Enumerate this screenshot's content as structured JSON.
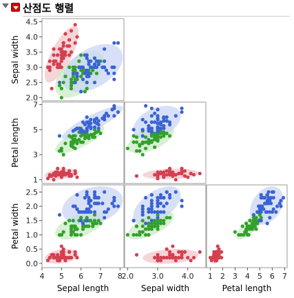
{
  "report": {
    "title": "산점도 행렬"
  },
  "icons": {
    "disclosure": "disclosure-triangle-icon",
    "menu": "red-popup-menu-icon"
  },
  "colors": {
    "setosa": "#d4404f",
    "versicolor": "#33a02c",
    "virginica": "#3a63d4",
    "ellipse_setosa": "#f3c6cb",
    "ellipse_versicolor": "#c9ecc3",
    "ellipse_virginica": "#cad6f3"
  },
  "chart_data": {
    "type": "scatter",
    "variables": [
      "Sepal length",
      "Sepal width",
      "Petal length",
      "Petal width"
    ],
    "axes": {
      "Sepal length": {
        "range": [
          4,
          8.2
        ],
        "ticks": [
          4,
          5,
          6,
          7,
          8
        ]
      },
      "Sepal width": {
        "range": [
          1.9,
          4.6
        ],
        "ticks": [
          2.0,
          2.5,
          3.0,
          3.5,
          4.0,
          4.5
        ],
        "ticks_bottom": [
          2.0,
          3.0,
          4.0
        ]
      },
      "Petal length": {
        "range": [
          0.7,
          7.2
        ],
        "ticks": [
          1,
          3,
          5,
          7
        ],
        "ticks_bottom": [
          1,
          2,
          3,
          4,
          5,
          6,
          7
        ]
      },
      "Petal width": {
        "range": [
          -0.15,
          2.75
        ],
        "ticks": [
          0,
          0.5,
          1.0,
          1.5,
          2.0,
          2.5
        ]
      }
    },
    "layout": "lower-triangle",
    "density_ellipses": true,
    "groups": [
      {
        "color_key": "setosa",
        "points": [
          [
            5.1,
            3.5,
            1.4,
            0.2
          ],
          [
            4.9,
            3.0,
            1.4,
            0.2
          ],
          [
            4.7,
            3.2,
            1.3,
            0.2
          ],
          [
            4.6,
            3.1,
            1.5,
            0.2
          ],
          [
            5.0,
            3.6,
            1.4,
            0.2
          ],
          [
            5.4,
            3.9,
            1.7,
            0.4
          ],
          [
            4.6,
            3.4,
            1.4,
            0.3
          ],
          [
            5.0,
            3.4,
            1.5,
            0.2
          ],
          [
            4.4,
            2.9,
            1.4,
            0.2
          ],
          [
            4.9,
            3.1,
            1.5,
            0.1
          ],
          [
            5.4,
            3.7,
            1.5,
            0.2
          ],
          [
            4.8,
            3.4,
            1.6,
            0.2
          ],
          [
            4.8,
            3.0,
            1.4,
            0.1
          ],
          [
            4.3,
            3.0,
            1.1,
            0.1
          ],
          [
            5.8,
            4.0,
            1.2,
            0.2
          ],
          [
            5.7,
            4.4,
            1.5,
            0.4
          ],
          [
            5.4,
            3.9,
            1.3,
            0.4
          ],
          [
            5.1,
            3.5,
            1.4,
            0.3
          ],
          [
            5.7,
            3.8,
            1.7,
            0.3
          ],
          [
            5.1,
            3.8,
            1.5,
            0.3
          ],
          [
            5.4,
            3.4,
            1.7,
            0.2
          ],
          [
            5.1,
            3.7,
            1.5,
            0.4
          ],
          [
            4.6,
            3.6,
            1.0,
            0.2
          ],
          [
            5.1,
            3.3,
            1.7,
            0.5
          ],
          [
            4.8,
            3.4,
            1.9,
            0.2
          ],
          [
            5.0,
            3.0,
            1.6,
            0.2
          ],
          [
            5.0,
            3.4,
            1.6,
            0.4
          ],
          [
            5.2,
            3.5,
            1.5,
            0.2
          ],
          [
            5.2,
            3.4,
            1.4,
            0.2
          ],
          [
            4.7,
            3.2,
            1.6,
            0.2
          ],
          [
            4.8,
            3.1,
            1.6,
            0.2
          ],
          [
            5.4,
            3.4,
            1.5,
            0.4
          ],
          [
            5.2,
            4.1,
            1.5,
            0.1
          ],
          [
            5.5,
            4.2,
            1.4,
            0.2
          ],
          [
            4.9,
            3.1,
            1.5,
            0.2
          ],
          [
            5.0,
            3.2,
            1.2,
            0.2
          ],
          [
            5.5,
            3.5,
            1.3,
            0.2
          ],
          [
            4.9,
            3.6,
            1.4,
            0.1
          ],
          [
            4.4,
            3.0,
            1.3,
            0.2
          ],
          [
            5.1,
            3.4,
            1.5,
            0.2
          ],
          [
            5.0,
            3.5,
            1.3,
            0.3
          ],
          [
            4.5,
            2.3,
            1.3,
            0.3
          ],
          [
            4.4,
            3.2,
            1.3,
            0.2
          ],
          [
            5.0,
            3.5,
            1.6,
            0.6
          ],
          [
            5.1,
            3.8,
            1.9,
            0.4
          ],
          [
            4.8,
            3.0,
            1.4,
            0.3
          ],
          [
            5.1,
            3.8,
            1.6,
            0.2
          ],
          [
            4.6,
            3.2,
            1.4,
            0.2
          ],
          [
            5.3,
            3.7,
            1.5,
            0.2
          ],
          [
            5.0,
            3.3,
            1.4,
            0.2
          ]
        ]
      },
      {
        "color_key": "versicolor",
        "points": [
          [
            7.0,
            3.2,
            4.7,
            1.4
          ],
          [
            6.4,
            3.2,
            4.5,
            1.5
          ],
          [
            6.9,
            3.1,
            4.9,
            1.5
          ],
          [
            5.5,
            2.3,
            4.0,
            1.3
          ],
          [
            6.5,
            2.8,
            4.6,
            1.5
          ],
          [
            5.7,
            2.8,
            4.5,
            1.3
          ],
          [
            6.3,
            3.3,
            4.7,
            1.6
          ],
          [
            4.9,
            2.4,
            3.3,
            1.0
          ],
          [
            6.6,
            2.9,
            4.6,
            1.3
          ],
          [
            5.2,
            2.7,
            3.9,
            1.4
          ],
          [
            5.0,
            2.0,
            3.5,
            1.0
          ],
          [
            5.9,
            3.0,
            4.2,
            1.5
          ],
          [
            6.0,
            2.2,
            4.0,
            1.0
          ],
          [
            6.1,
            2.9,
            4.7,
            1.4
          ],
          [
            5.6,
            2.9,
            3.6,
            1.3
          ],
          [
            6.7,
            3.1,
            4.4,
            1.4
          ],
          [
            5.6,
            3.0,
            4.5,
            1.5
          ],
          [
            5.8,
            2.7,
            4.1,
            1.0
          ],
          [
            6.2,
            2.2,
            4.5,
            1.5
          ],
          [
            5.6,
            2.5,
            3.9,
            1.1
          ],
          [
            5.9,
            3.2,
            4.8,
            1.8
          ],
          [
            6.1,
            2.8,
            4.0,
            1.3
          ],
          [
            6.3,
            2.5,
            4.9,
            1.5
          ],
          [
            6.1,
            2.8,
            4.7,
            1.2
          ],
          [
            6.4,
            2.9,
            4.3,
            1.3
          ],
          [
            6.6,
            3.0,
            4.4,
            1.4
          ],
          [
            6.8,
            2.8,
            4.8,
            1.4
          ],
          [
            6.7,
            3.0,
            5.0,
            1.7
          ],
          [
            6.0,
            2.9,
            4.5,
            1.5
          ],
          [
            5.7,
            2.6,
            3.5,
            1.0
          ],
          [
            5.5,
            2.4,
            3.8,
            1.1
          ],
          [
            5.5,
            2.4,
            3.7,
            1.0
          ],
          [
            5.8,
            2.7,
            3.9,
            1.2
          ],
          [
            6.0,
            2.7,
            5.1,
            1.6
          ],
          [
            5.4,
            3.0,
            4.5,
            1.5
          ],
          [
            6.0,
            3.4,
            4.5,
            1.6
          ],
          [
            6.7,
            3.1,
            4.7,
            1.5
          ],
          [
            6.3,
            2.3,
            4.4,
            1.3
          ],
          [
            5.6,
            3.0,
            4.1,
            1.3
          ],
          [
            5.5,
            2.5,
            4.0,
            1.3
          ],
          [
            5.5,
            2.6,
            4.4,
            1.2
          ],
          [
            6.1,
            3.0,
            4.6,
            1.4
          ],
          [
            5.8,
            2.6,
            4.0,
            1.2
          ],
          [
            5.0,
            2.3,
            3.3,
            1.0
          ],
          [
            5.6,
            2.7,
            4.2,
            1.3
          ],
          [
            5.7,
            3.0,
            4.2,
            1.2
          ],
          [
            5.7,
            2.9,
            4.2,
            1.3
          ],
          [
            6.2,
            2.9,
            4.3,
            1.3
          ],
          [
            5.1,
            2.5,
            3.0,
            1.1
          ],
          [
            5.7,
            2.8,
            4.1,
            1.3
          ]
        ]
      },
      {
        "color_key": "virginica",
        "points": [
          [
            6.3,
            3.3,
            6.0,
            2.5
          ],
          [
            5.8,
            2.7,
            5.1,
            1.9
          ],
          [
            7.1,
            3.0,
            5.9,
            2.1
          ],
          [
            6.3,
            2.9,
            5.6,
            1.8
          ],
          [
            6.5,
            3.0,
            5.8,
            2.2
          ],
          [
            7.6,
            3.0,
            6.6,
            2.1
          ],
          [
            4.9,
            2.5,
            4.5,
            1.7
          ],
          [
            7.3,
            2.9,
            6.3,
            1.8
          ],
          [
            6.7,
            2.5,
            5.8,
            1.8
          ],
          [
            7.2,
            3.6,
            6.1,
            2.5
          ],
          [
            6.5,
            3.2,
            5.1,
            2.0
          ],
          [
            6.4,
            2.7,
            5.3,
            1.9
          ],
          [
            6.8,
            3.0,
            5.5,
            2.1
          ],
          [
            5.7,
            2.5,
            5.0,
            2.0
          ],
          [
            5.8,
            2.8,
            5.1,
            2.4
          ],
          [
            6.4,
            3.2,
            5.3,
            2.3
          ],
          [
            6.5,
            3.0,
            5.5,
            1.8
          ],
          [
            7.7,
            3.8,
            6.7,
            2.2
          ],
          [
            7.7,
            2.6,
            6.9,
            2.3
          ],
          [
            6.0,
            2.2,
            5.0,
            1.5
          ],
          [
            6.9,
            3.2,
            5.7,
            2.3
          ],
          [
            5.6,
            2.8,
            4.9,
            2.0
          ],
          [
            7.7,
            2.8,
            6.7,
            2.0
          ],
          [
            6.3,
            2.7,
            4.9,
            1.8
          ],
          [
            6.7,
            3.3,
            5.7,
            2.1
          ],
          [
            7.2,
            3.2,
            6.0,
            1.8
          ],
          [
            6.2,
            2.8,
            4.8,
            1.8
          ],
          [
            6.1,
            3.0,
            4.9,
            1.8
          ],
          [
            6.4,
            2.8,
            5.6,
            2.1
          ],
          [
            7.2,
            3.0,
            5.8,
            1.6
          ],
          [
            7.4,
            2.8,
            6.1,
            1.9
          ],
          [
            7.9,
            3.8,
            6.4,
            2.0
          ],
          [
            6.4,
            2.8,
            5.6,
            2.2
          ],
          [
            6.3,
            2.8,
            5.1,
            1.5
          ],
          [
            6.1,
            2.6,
            5.6,
            1.4
          ],
          [
            7.7,
            3.0,
            6.1,
            2.3
          ],
          [
            6.3,
            3.4,
            5.6,
            2.4
          ],
          [
            6.4,
            3.1,
            5.5,
            1.8
          ],
          [
            6.0,
            3.0,
            4.8,
            1.8
          ],
          [
            6.9,
            3.1,
            5.4,
            2.1
          ],
          [
            6.7,
            3.1,
            5.6,
            2.4
          ],
          [
            6.9,
            3.1,
            5.1,
            2.3
          ],
          [
            5.8,
            2.7,
            5.1,
            1.9
          ],
          [
            6.8,
            3.2,
            5.9,
            2.3
          ],
          [
            6.7,
            3.3,
            5.7,
            2.5
          ],
          [
            6.7,
            3.0,
            5.2,
            2.3
          ],
          [
            6.3,
            2.5,
            5.0,
            1.9
          ],
          [
            6.5,
            3.0,
            5.2,
            2.0
          ],
          [
            6.2,
            3.4,
            5.4,
            2.3
          ],
          [
            5.9,
            3.0,
            5.1,
            1.8
          ]
        ]
      }
    ]
  }
}
